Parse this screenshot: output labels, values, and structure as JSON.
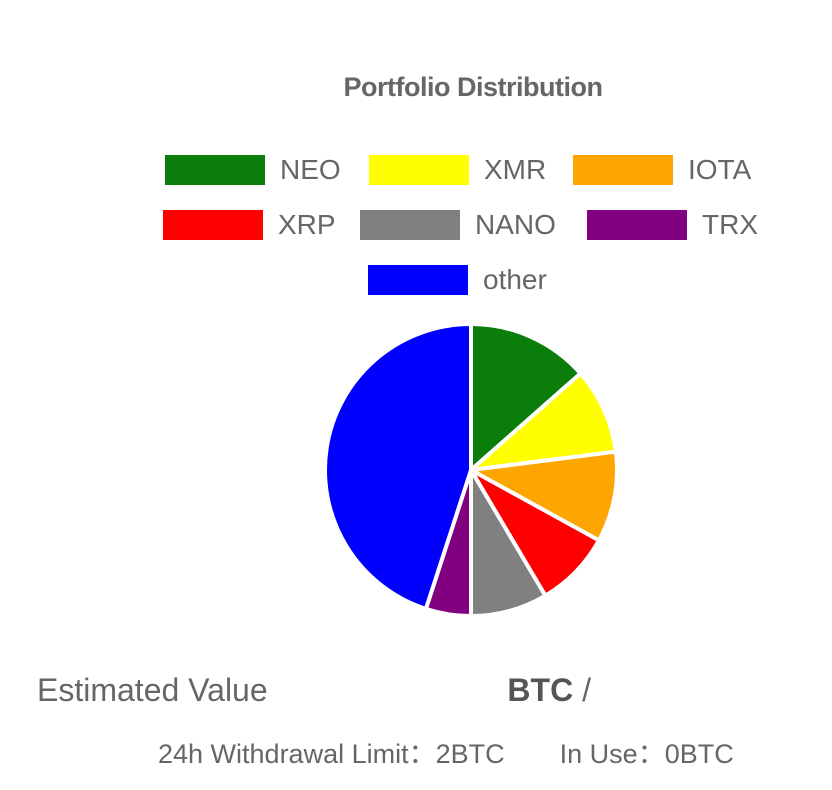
{
  "chart_data": {
    "type": "pie",
    "title": "Portfolio Distribution",
    "series": [
      {
        "name": "NEO",
        "value": 13.5,
        "color": "#0a7d0a"
      },
      {
        "name": "XMR",
        "value": 9.5,
        "color": "#ffff00"
      },
      {
        "name": "IOTA",
        "value": 10.0,
        "color": "#ffa500"
      },
      {
        "name": "XRP",
        "value": 8.5,
        "color": "#ff0000"
      },
      {
        "name": "NANO",
        "value": 8.5,
        "color": "#808080"
      },
      {
        "name": "TRX",
        "value": 5.0,
        "color": "#800080"
      },
      {
        "name": "other",
        "value": 45.0,
        "color": "#0000ff"
      }
    ],
    "legend_position": "top"
  },
  "summary": {
    "estimated_label": "Estimated Value",
    "estimated_unit": "BTC",
    "separator": "/",
    "withdrawal_limit": "24h Withdrawal Limit：2BTC",
    "in_use": "In Use：0BTC"
  }
}
